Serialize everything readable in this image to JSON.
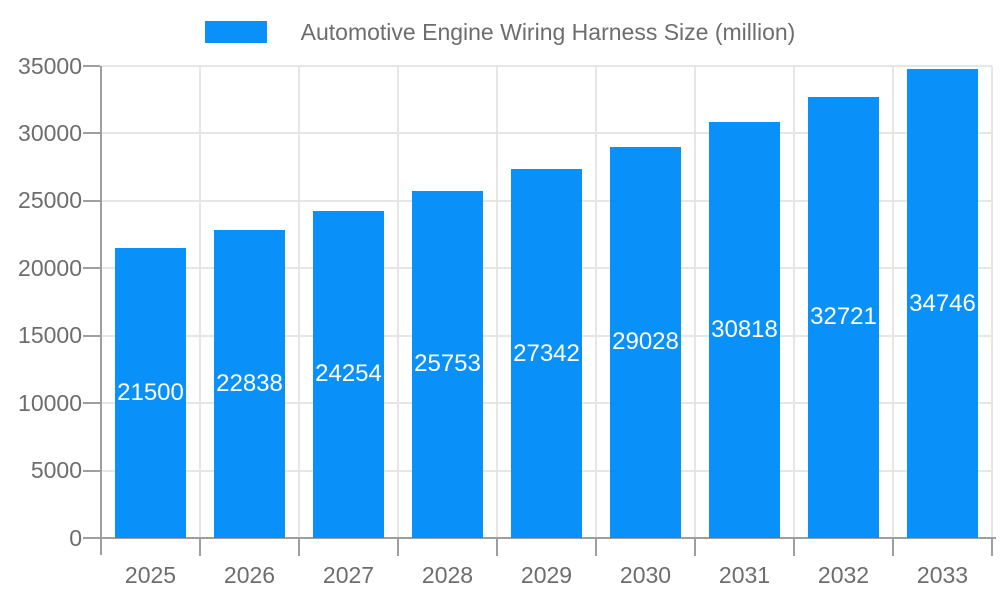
{
  "chart_data": {
    "type": "bar",
    "title": "Automotive Engine Wiring Harness Size (million)",
    "categories": [
      "2025",
      "2026",
      "2027",
      "2028",
      "2029",
      "2030",
      "2031",
      "2032",
      "2033"
    ],
    "values": [
      21500,
      22838,
      24254,
      25753,
      27342,
      29028,
      30818,
      32721,
      34746
    ],
    "xlabel": "",
    "ylabel": "",
    "ylim": [
      0,
      35000
    ],
    "y_ticks": [
      0,
      5000,
      10000,
      15000,
      20000,
      25000,
      30000,
      35000
    ],
    "grid": true,
    "legend_position": "top",
    "bar_color": "#0991f9",
    "value_label_color": "#ffffff",
    "axis_text_color": "#6d6d6d",
    "grid_color": "#e6e6e6",
    "axis_line_color": "#9e9e9e"
  }
}
